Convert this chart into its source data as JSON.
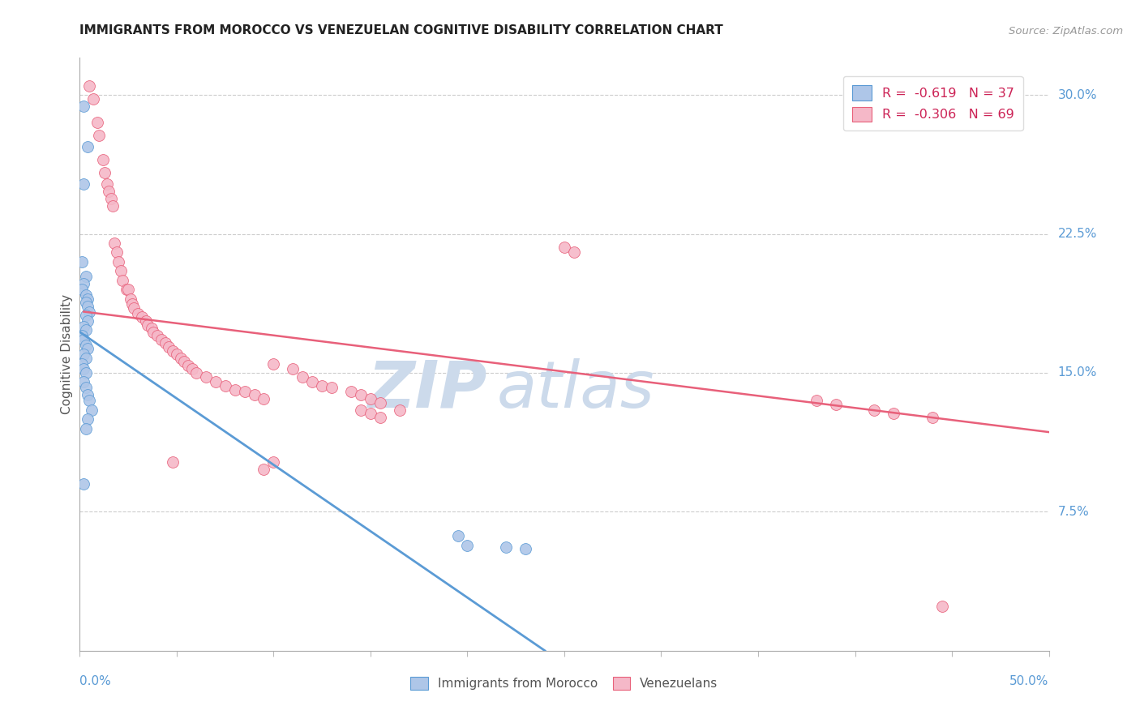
{
  "title": "IMMIGRANTS FROM MOROCCO VS VENEZUELAN COGNITIVE DISABILITY CORRELATION CHART",
  "source": "Source: ZipAtlas.com",
  "ylabel": "Cognitive Disability",
  "right_yticks": [
    "30.0%",
    "22.5%",
    "15.0%",
    "7.5%"
  ],
  "right_ytick_vals": [
    0.3,
    0.225,
    0.15,
    0.075
  ],
  "xlim": [
    0.0,
    0.5
  ],
  "ylim": [
    0.0,
    0.32
  ],
  "legend_r_morocco": "-0.619",
  "legend_n_morocco": "37",
  "legend_r_venezuela": "-0.306",
  "legend_n_venezuela": "69",
  "morocco_color": "#aec6e8",
  "venezuela_color": "#f5b8c8",
  "morocco_line_color": "#5b9bd5",
  "venezuela_line_color": "#e8607a",
  "background_color": "#ffffff",
  "watermark_color": "#ccdaeb",
  "morocco_x": [
    0.002,
    0.004,
    0.002,
    0.001,
    0.003,
    0.002,
    0.001,
    0.003,
    0.004,
    0.003,
    0.004,
    0.005,
    0.003,
    0.004,
    0.002,
    0.003,
    0.001,
    0.002,
    0.003,
    0.004,
    0.002,
    0.003,
    0.001,
    0.002,
    0.003,
    0.002,
    0.003,
    0.004,
    0.005,
    0.006,
    0.004,
    0.003,
    0.002,
    0.195,
    0.2,
    0.22,
    0.23
  ],
  "morocco_y": [
    0.294,
    0.272,
    0.252,
    0.21,
    0.202,
    0.198,
    0.195,
    0.192,
    0.19,
    0.188,
    0.186,
    0.183,
    0.181,
    0.178,
    0.175,
    0.173,
    0.17,
    0.168,
    0.165,
    0.163,
    0.16,
    0.158,
    0.155,
    0.152,
    0.15,
    0.145,
    0.142,
    0.138,
    0.135,
    0.13,
    0.125,
    0.12,
    0.09,
    0.062,
    0.057,
    0.056,
    0.055
  ],
  "venezuela_x": [
    0.005,
    0.007,
    0.009,
    0.01,
    0.012,
    0.013,
    0.014,
    0.015,
    0.016,
    0.017,
    0.018,
    0.019,
    0.02,
    0.021,
    0.022,
    0.024,
    0.025,
    0.026,
    0.027,
    0.028,
    0.03,
    0.032,
    0.034,
    0.035,
    0.037,
    0.038,
    0.04,
    0.042,
    0.044,
    0.046,
    0.048,
    0.05,
    0.052,
    0.054,
    0.056,
    0.058,
    0.06,
    0.065,
    0.07,
    0.075,
    0.08,
    0.085,
    0.09,
    0.095,
    0.1,
    0.11,
    0.115,
    0.12,
    0.125,
    0.13,
    0.14,
    0.145,
    0.15,
    0.155,
    0.165,
    0.25,
    0.255,
    0.38,
    0.39,
    0.41,
    0.42,
    0.44,
    0.445,
    0.048,
    0.095,
    0.1,
    0.145,
    0.15,
    0.155
  ],
  "venezuela_y": [
    0.305,
    0.298,
    0.285,
    0.278,
    0.265,
    0.258,
    0.252,
    0.248,
    0.244,
    0.24,
    0.22,
    0.215,
    0.21,
    0.205,
    0.2,
    0.195,
    0.195,
    0.19,
    0.187,
    0.185,
    0.182,
    0.18,
    0.178,
    0.176,
    0.174,
    0.172,
    0.17,
    0.168,
    0.166,
    0.164,
    0.162,
    0.16,
    0.158,
    0.156,
    0.154,
    0.152,
    0.15,
    0.148,
    0.145,
    0.143,
    0.141,
    0.14,
    0.138,
    0.136,
    0.155,
    0.152,
    0.148,
    0.145,
    0.143,
    0.142,
    0.14,
    0.138,
    0.136,
    0.134,
    0.13,
    0.218,
    0.215,
    0.135,
    0.133,
    0.13,
    0.128,
    0.126,
    0.024,
    0.102,
    0.098,
    0.102,
    0.13,
    0.128,
    0.126
  ],
  "morocco_line_x": [
    0.0,
    0.24
  ],
  "morocco_line_y": [
    0.172,
    0.0
  ],
  "venezuela_line_x": [
    0.002,
    0.5
  ],
  "venezuela_line_y": [
    0.183,
    0.118
  ]
}
